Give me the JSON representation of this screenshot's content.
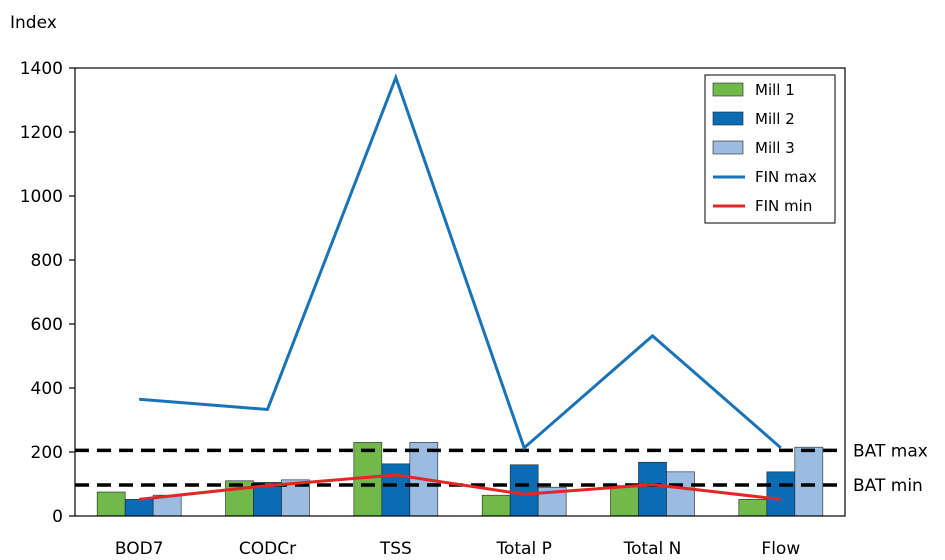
{
  "chart_data": {
    "type": "bar",
    "ylabel": "Index",
    "ylim": [
      0,
      1400
    ],
    "yticks": [
      0,
      200,
      400,
      600,
      800,
      1000,
      1200,
      1400
    ],
    "categories": [
      "BOD7",
      "CODCr",
      "TSS",
      "Total P",
      "Total N",
      "Flow"
    ],
    "series": [
      {
        "name": "Mill 1",
        "kind": "bar",
        "color": "#70b94a",
        "values": [
          75,
          110,
          230,
          65,
          95,
          52
        ]
      },
      {
        "name": "Mill 2",
        "kind": "bar",
        "color": "#0a6db4",
        "values": [
          52,
          105,
          163,
          160,
          168,
          138
        ]
      },
      {
        "name": "Mill 3",
        "kind": "bar",
        "color": "#9bbbe1",
        "values": [
          65,
          113,
          230,
          90,
          138,
          215
        ]
      },
      {
        "name": "FIN max",
        "kind": "line",
        "color": "#1a73b6",
        "values": [
          365,
          333,
          1370,
          213,
          563,
          213
        ]
      },
      {
        "name": "FIN min",
        "kind": "line",
        "color": "#e32626",
        "values": [
          52,
          95,
          128,
          68,
          98,
          52
        ]
      }
    ],
    "reference_lines": [
      {
        "label": "BAT max",
        "value": 205
      },
      {
        "label": "BAT min",
        "value": 97
      }
    ],
    "legend": "top-right",
    "grid": false
  }
}
